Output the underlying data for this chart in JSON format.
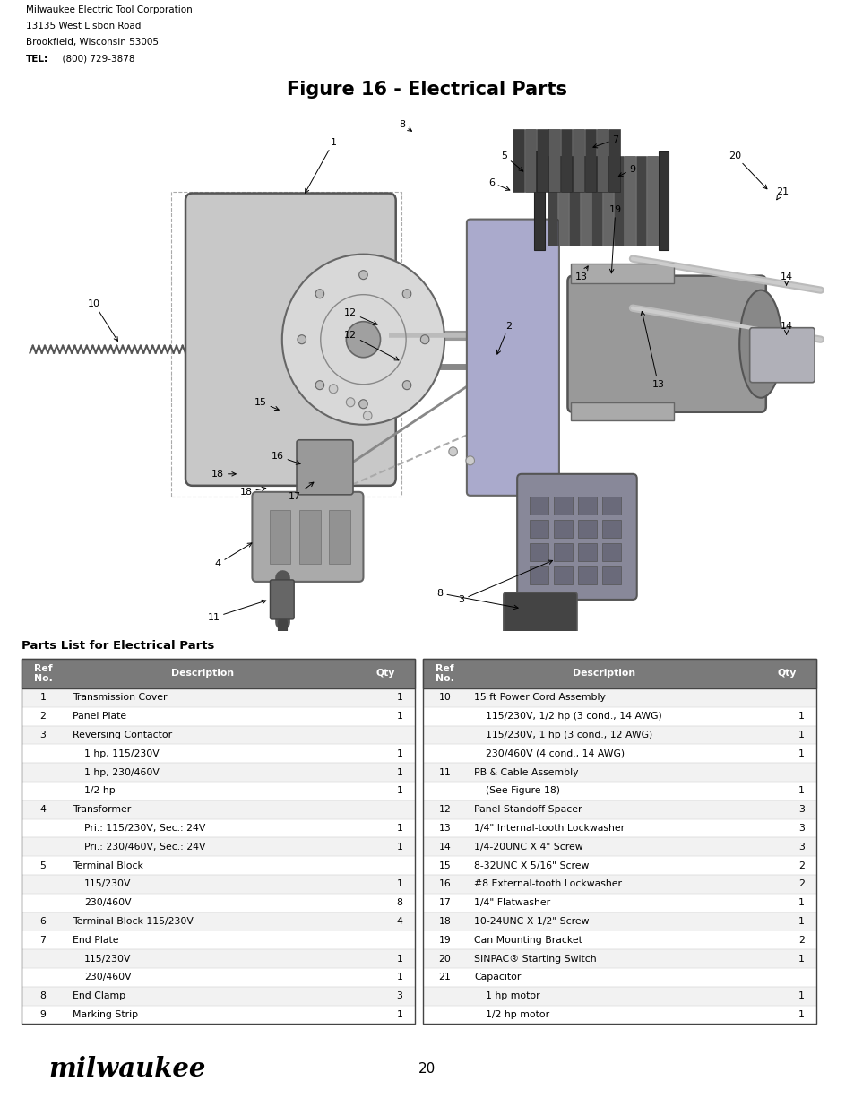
{
  "page_title": "Figure 16 - Electrical Parts",
  "company_name": "Milwaukee Electric Tool Corporation",
  "company_address1": "13135 West Lisbon Road",
  "company_address2": "Brookfield, Wisconsin 53005",
  "company_tel_bold": "TEL:",
  "company_tel_rest": "  (800) 729-3878",
  "page_number": "20",
  "section_title": "Parts List for Electrical Parts",
  "left_table": {
    "headers": [
      "Ref\nNo.",
      "Description",
      "Qty"
    ],
    "rows": [
      [
        "1",
        "Transmission Cover",
        "1",
        false
      ],
      [
        "2",
        "Panel Plate",
        "1",
        false
      ],
      [
        "3",
        "Reversing Contactor",
        "",
        false
      ],
      [
        "",
        "1 hp, 115/230V",
        "1",
        true
      ],
      [
        "",
        "1 hp, 230/460V",
        "1",
        true
      ],
      [
        "",
        "1/2 hp",
        "1",
        true
      ],
      [
        "4",
        "Transformer",
        "",
        false
      ],
      [
        "",
        "Pri.: 115/230V, Sec.: 24V",
        "1",
        true
      ],
      [
        "",
        "Pri.: 230/460V, Sec.: 24V",
        "1",
        true
      ],
      [
        "5",
        "Terminal Block",
        "",
        false
      ],
      [
        "",
        "115/230V",
        "1",
        true
      ],
      [
        "",
        "230/460V",
        "8",
        true
      ],
      [
        "6",
        "Terminal Block 115/230V",
        "4",
        false
      ],
      [
        "7",
        "End Plate",
        "",
        false
      ],
      [
        "",
        "115/230V",
        "1",
        true
      ],
      [
        "",
        "230/460V",
        "1",
        true
      ],
      [
        "8",
        "End Clamp",
        "3",
        false
      ],
      [
        "9",
        "Marking Strip",
        "1",
        false
      ]
    ]
  },
  "right_table": {
    "headers": [
      "Ref\nNo.",
      "Description",
      "Qty"
    ],
    "rows": [
      [
        "10",
        "15 ft Power Cord Assembly",
        "",
        false
      ],
      [
        "",
        "115/230V, 1/2 hp (3 cond., 14 AWG)",
        "1",
        true
      ],
      [
        "",
        "115/230V, 1 hp (3 cond., 12 AWG)",
        "1",
        true
      ],
      [
        "",
        "230/460V (4 cond., 14 AWG)",
        "1",
        true
      ],
      [
        "11",
        "PB & Cable Assembly",
        "",
        false
      ],
      [
        "",
        "(See Figure 18)",
        "1",
        true
      ],
      [
        "12",
        "Panel Standoff Spacer",
        "3",
        false
      ],
      [
        "13",
        "1/4\" Internal-tooth Lockwasher",
        "3",
        false
      ],
      [
        "14",
        "1/4-20UNC X 4\" Screw",
        "3",
        false
      ],
      [
        "15",
        "8-32UNC X 5/16\" Screw",
        "2",
        false
      ],
      [
        "16",
        "#8 External-tooth Lockwasher",
        "2",
        false
      ],
      [
        "17",
        "1/4\" Flatwasher",
        "1",
        false
      ],
      [
        "18",
        "10-24UNC X 1/2\" Screw",
        "1",
        false
      ],
      [
        "19",
        "Can Mounting Bracket",
        "2",
        false
      ],
      [
        "20",
        "SINPAC® Starting Switch",
        "1",
        false
      ],
      [
        "21",
        "Capacitor",
        "",
        false
      ],
      [
        "",
        "1 hp motor",
        "1",
        true
      ],
      [
        "",
        "1/2 hp motor",
        "1",
        true
      ]
    ]
  }
}
